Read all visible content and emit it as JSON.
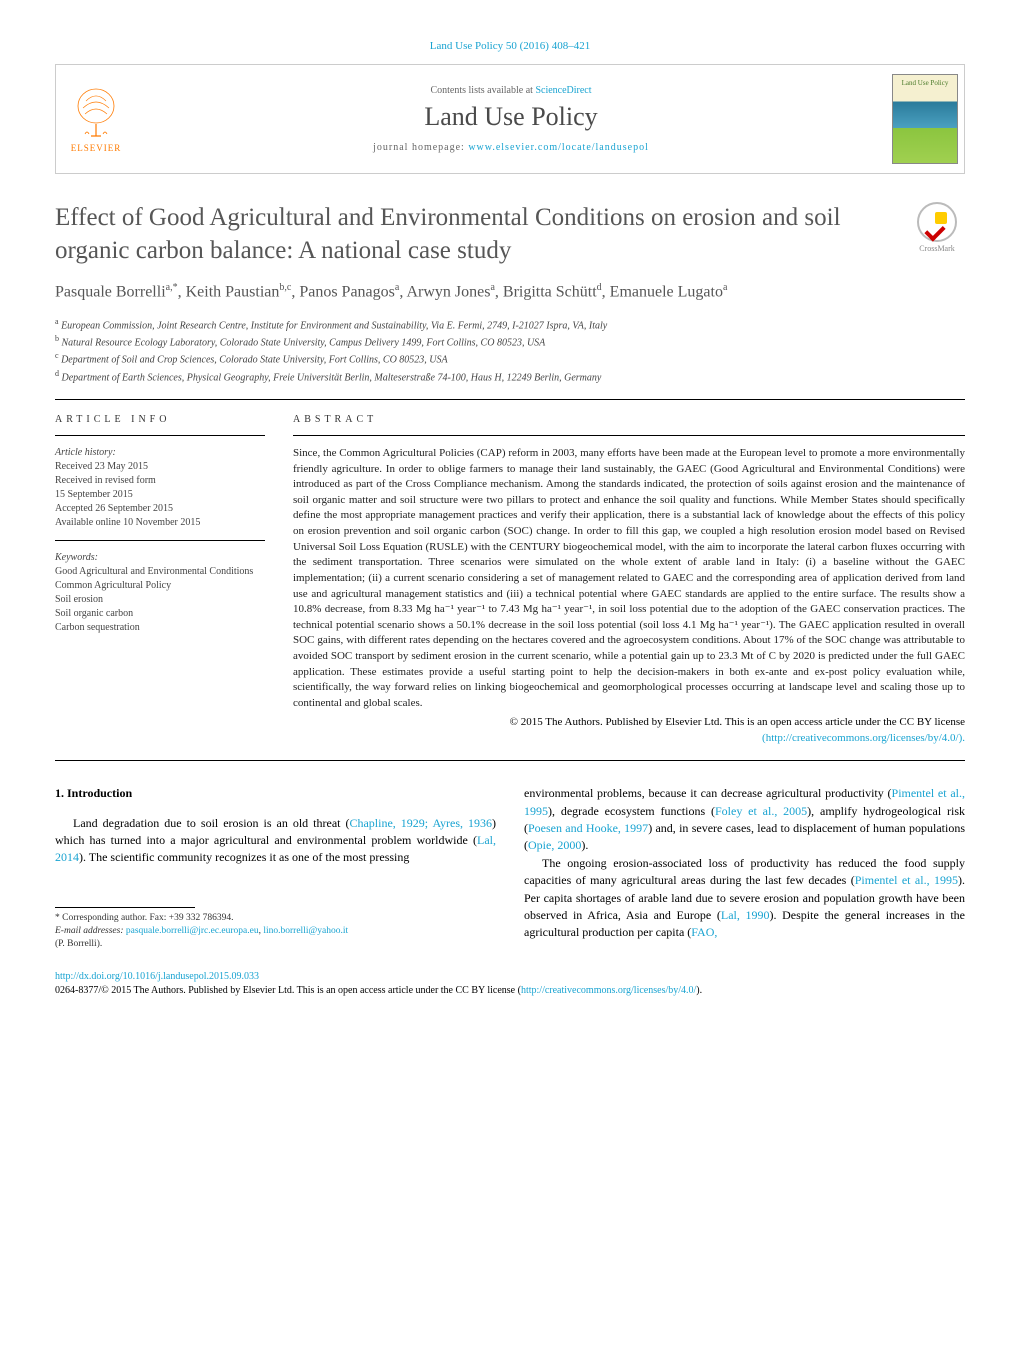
{
  "header": {
    "journal_ref": "Land Use Policy 50 (2016) 408–421",
    "contents_prefix": "Contents lists available at ",
    "contents_link": "ScienceDirect",
    "journal_name": "Land Use Policy",
    "homepage_prefix": "journal homepage: ",
    "homepage_url": "www.elsevier.com/locate/landusepol",
    "publisher": "ELSEVIER",
    "cover_label": "Land Use Policy",
    "crossmark": "CrossMark"
  },
  "article": {
    "title": "Effect of Good Agricultural and Environmental Conditions on erosion and soil organic carbon balance: A national case study",
    "authors_html": "Pasquale Borrelli<sup>a,*</sup>, Keith Paustian<sup>b,c</sup>, Panos Panagos<sup>a</sup>, Arwyn Jones<sup>a</sup>, Brigitta Schütt<sup>d</sup>, Emanuele Lugato<sup>a</sup>",
    "affiliations": [
      "European Commission, Joint Research Centre, Institute for Environment and Sustainability, Via E. Fermi, 2749, I-21027 Ispra, VA, Italy",
      "Natural Resource Ecology Laboratory, Colorado State University, Campus Delivery 1499, Fort Collins, CO 80523, USA",
      "Department of Soil and Crop Sciences, Colorado State University, Fort Collins, CO 80523, USA",
      "Department of Earth Sciences, Physical Geography, Freie Universität Berlin, Malteserstraße 74-100, Haus H, 12249 Berlin, Germany"
    ],
    "affil_markers": [
      "a",
      "b",
      "c",
      "d"
    ]
  },
  "info": {
    "heading": "article info",
    "history_label": "Article history:",
    "history": [
      "Received 23 May 2015",
      "Received in revised form",
      "15 September 2015",
      "Accepted 26 September 2015",
      "Available online 10 November 2015"
    ],
    "keywords_label": "Keywords:",
    "keywords": [
      "Good Agricultural and Environmental Conditions",
      "Common Agricultural Policy",
      "Soil erosion",
      "Soil organic carbon",
      "Carbon sequestration"
    ]
  },
  "abstract": {
    "heading": "abstract",
    "text": "Since, the Common Agricultural Policies (CAP) reform in 2003, many efforts have been made at the European level to promote a more environmentally friendly agriculture. In order to oblige farmers to manage their land sustainably, the GAEC (Good Agricultural and Environmental Conditions) were introduced as part of the Cross Compliance mechanism. Among the standards indicated, the protection of soils against erosion and the maintenance of soil organic matter and soil structure were two pillars to protect and enhance the soil quality and functions. While Member States should specifically define the most appropriate management practices and verify their application, there is a substantial lack of knowledge about the effects of this policy on erosion prevention and soil organic carbon (SOC) change. In order to fill this gap, we coupled a high resolution erosion model based on Revised Universal Soil Loss Equation (RUSLE) with the CENTURY biogeochemical model, with the aim to incorporate the lateral carbon fluxes occurring with the sediment transportation. Three scenarios were simulated on the whole extent of arable land in Italy: (i) a baseline without the GAEC implementation; (ii) a current scenario considering a set of management related to GAEC and the corresponding area of application derived from land use and agricultural management statistics and (iii) a technical potential where GAEC standards are applied to the entire surface. The results show a 10.8% decrease, from 8.33 Mg ha⁻¹ year⁻¹ to 7.43 Mg ha⁻¹ year⁻¹, in soil loss potential due to the adoption of the GAEC conservation practices. The technical potential scenario shows a 50.1% decrease in the soil loss potential (soil loss 4.1 Mg ha⁻¹ year⁻¹). The GAEC application resulted in overall SOC gains, with different rates depending on the hectares covered and the agroecosystem conditions. About 17% of the SOC change was attributable to avoided SOC transport by sediment erosion in the current scenario, while a potential gain up to 23.3 Mt of C by 2020 is predicted under the full GAEC application. These estimates provide a useful starting point to help the decision-makers in both ex-ante and ex-post policy evaluation while, scientifically, the way forward relies on linking biogeochemical and geomorphological processes occurring at landscape level and scaling those up to continental and global scales.",
    "copyright": "© 2015 The Authors. Published by Elsevier Ltd. This is an open access article under the CC BY license",
    "license_url": "(http://creativecommons.org/licenses/by/4.0/)."
  },
  "body": {
    "section_heading": "1. Introduction",
    "col1_p1_pre": "Land degradation due to soil erosion is an old threat (",
    "col1_cite1": "Chapline, 1929; Ayres, 1936",
    "col1_p1_mid": ") which has turned into a major agricultural and environmental problem worldwide (",
    "col1_cite2": "Lal, 2014",
    "col1_p1_post": "). The scientific community recognizes it as one of the most pressing",
    "col2_p1_pre": "environmental problems, because it can decrease agricultural productivity (",
    "col2_cite1": "Pimentel et al., 1995",
    "col2_p1_mid1": "), degrade ecosystem functions (",
    "col2_cite2": "Foley et al., 2005",
    "col2_p1_mid2": "), amplify hydrogeological risk (",
    "col2_cite3": "Poesen and Hooke, 1997",
    "col2_p1_mid3": ") and, in severe cases, lead to displacement of human populations (",
    "col2_cite4": "Opie, 2000",
    "col2_p1_post": ").",
    "col2_p2_pre": "The ongoing erosion-associated loss of productivity has reduced the food supply capacities of many agricultural areas during the last few decades (",
    "col2_cite5": "Pimentel et al., 1995",
    "col2_p2_mid1": "). Per capita shortages of arable land due to severe erosion and population growth have been observed in Africa, Asia and Europe (",
    "col2_cite6": "Lal, 1990",
    "col2_p2_mid2": "). Despite the general increases in the agricultural production per capita (",
    "col2_cite7": "FAO,"
  },
  "footer": {
    "corr_label": "* Corresponding author. Fax: +39 332 786394.",
    "email_label": "E-mail addresses:",
    "email1": "pasquale.borrelli@jrc.ec.europa.eu",
    "email2": "lino.borrelli@yahoo.it",
    "email_attr": "(P. Borrelli).",
    "doi": "http://dx.doi.org/10.1016/j.landusepol.2015.09.033",
    "issn_line": "0264-8377/© 2015 The Authors. Published by Elsevier Ltd. This is an open access article under the CC BY license (",
    "license_link": "http://creativecommons.org/licenses/by/4.0/",
    "issn_close": ")."
  },
  "colors": {
    "link": "#19a3d1",
    "elsevier_orange": "#ff7a00",
    "title_gray": "#565656",
    "text": "#222222"
  }
}
